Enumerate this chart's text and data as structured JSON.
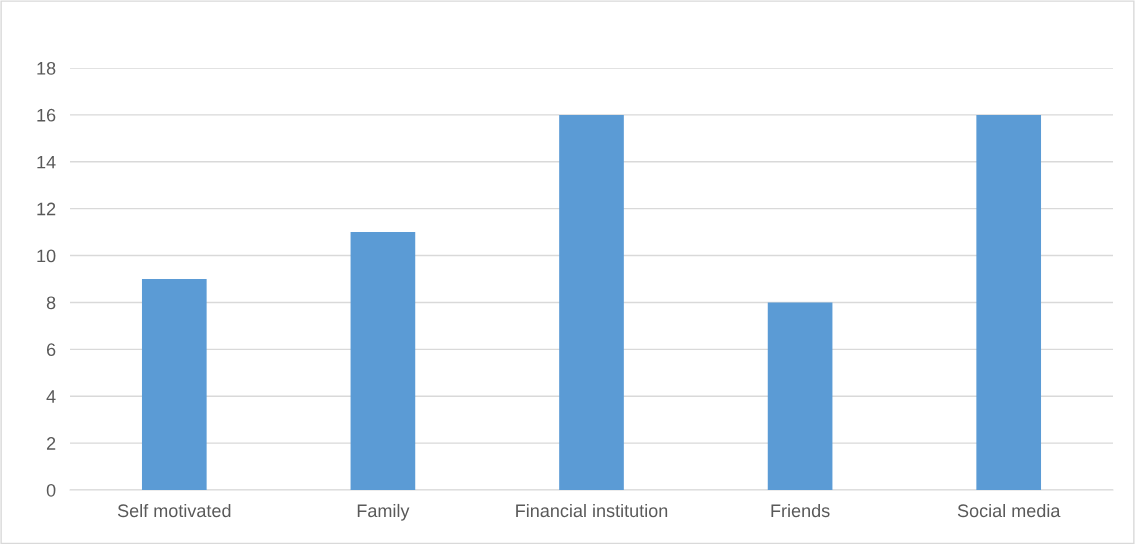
{
  "chart_data": {
    "type": "bar",
    "categories": [
      "Self motivated",
      "Family",
      "Financial institution",
      "Friends",
      "Social media"
    ],
    "values": [
      9,
      11,
      16,
      8,
      16
    ],
    "color": "#5b9bd5",
    "ylim": [
      0,
      18
    ],
    "yticks": [
      0,
      2,
      4,
      6,
      8,
      10,
      12,
      14,
      16,
      18
    ],
    "grid": "y",
    "legend": false
  }
}
